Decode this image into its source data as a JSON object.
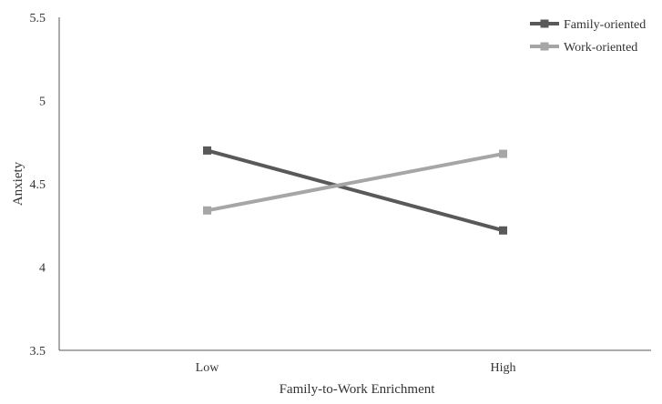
{
  "chart_data": {
    "type": "line",
    "title": "",
    "xlabel": "Family-to-Work Enrichment",
    "ylabel": "Anxiety",
    "categories": [
      "Low",
      "High"
    ],
    "ylim": [
      3.5,
      5.5
    ],
    "yticks": [
      3.5,
      4,
      4.5,
      5,
      5.5
    ],
    "ytick_labels": [
      "3.5",
      "4",
      "4.5",
      "5",
      "5.5"
    ],
    "grid": false,
    "legend_position": "top-right",
    "series": [
      {
        "name": "Family-oriented",
        "values": [
          4.7,
          4.22
        ],
        "color": "#595959",
        "marker": "square"
      },
      {
        "name": "Work-oriented",
        "values": [
          4.34,
          4.68
        ],
        "color": "#a6a6a6",
        "marker": "square"
      }
    ]
  }
}
